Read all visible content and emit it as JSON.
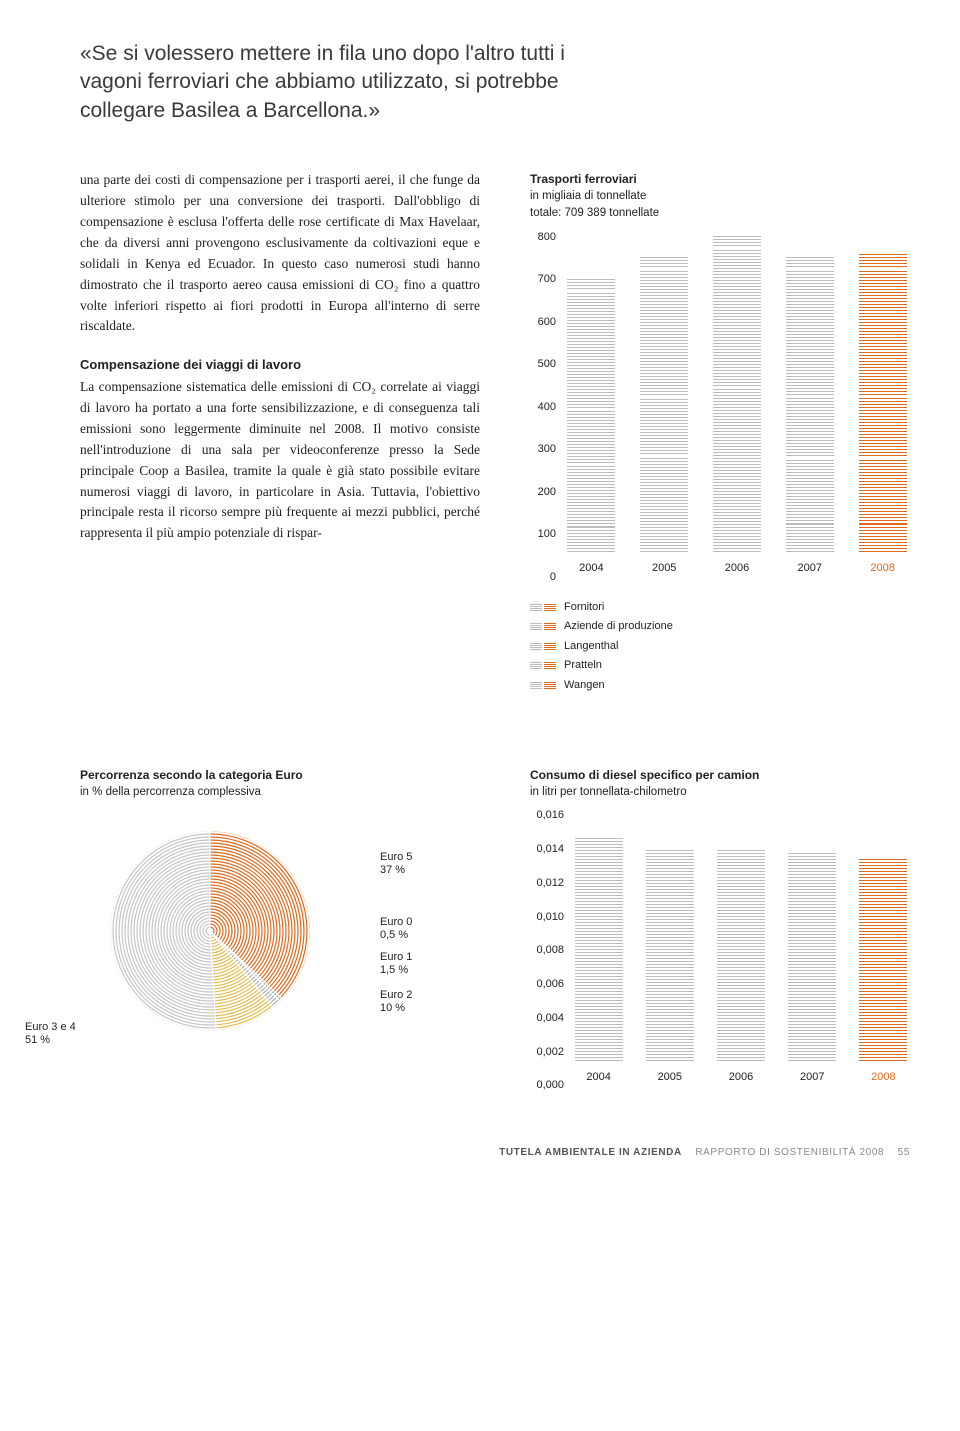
{
  "quote": "«Se si volessero mettere in fila uno dopo l'altro tutti i vagoni ferroviari che abbiamo utilizzato, si potrebbe collegare Basilea a Barcellona.»",
  "para1": "una parte dei costi di compensazione per i trasporti aerei, il che funge da ulteriore stimolo per una conversione dei trasporti. Dall'obbligo di compensazione è esclusa l'offerta delle rose certificate di Max Havelaar, che da diversi anni provengono esclusivamente da coltivazioni eque e solidali in Kenya ed Ecuador. In questo caso numerosi studi hanno dimostrato che il trasporto aereo causa emissioni di CO₂ fino a quattro volte inferiori rispetto ai fiori prodotti in Europa all'interno di serre riscaldate.",
  "subhead1": "Compensazione dei viaggi di lavoro",
  "para2": "La compensazione sistematica delle emissioni di CO₂ correlate ai viaggi di lavoro ha portato a una forte sensibilizzazione, e di conseguenza tali emissioni sono leggermente diminuite nel 2008. Il motivo consiste nell'introduzione di una sala per videoconferenze presso la Sede principale Coop a Basilea, tramite la quale è già stato possibile evitare numerosi viaggi di lavoro, in particolare in Asia. Tuttavia, l'obiettivo principale resta il ricorso sempre più frequente ai mezzi pubblici, perché rappresenta il più ampio potenziale di rispar-",
  "chart1": {
    "title": "Trasporti ferroviari",
    "subtitle1": "in migliaia di tonnellate",
    "subtitle2": "totale: 709 389 tonnellate",
    "ymax": 800,
    "ystep": 100,
    "yticks": [
      "800",
      "700",
      "600",
      "500",
      "400",
      "300",
      "200",
      "100",
      "0"
    ],
    "categories": [
      "2004",
      "2005",
      "2006",
      "2007",
      "2008"
    ],
    "highlight_index": 4,
    "stacks": [
      [
        {
          "v": 60,
          "c": "grey"
        },
        {
          "v": 150,
          "c": "grey"
        },
        {
          "v": 130,
          "c": "grey"
        },
        {
          "v": 280,
          "c": "grey"
        },
        {
          "v": 30,
          "c": "grey"
        }
      ],
      [
        {
          "v": 70,
          "c": "grey"
        },
        {
          "v": 160,
          "c": "grey"
        },
        {
          "v": 140,
          "c": "grey"
        },
        {
          "v": 300,
          "c": "grey"
        },
        {
          "v": 30,
          "c": "grey"
        }
      ],
      [
        {
          "v": 70,
          "c": "grey"
        },
        {
          "v": 170,
          "c": "grey"
        },
        {
          "v": 150,
          "c": "grey"
        },
        {
          "v": 330,
          "c": "grey"
        },
        {
          "v": 30,
          "c": "grey"
        }
      ],
      [
        {
          "v": 65,
          "c": "grey"
        },
        {
          "v": 160,
          "c": "grey"
        },
        {
          "v": 145,
          "c": "grey"
        },
        {
          "v": 300,
          "c": "grey"
        },
        {
          "v": 30,
          "c": "grey"
        }
      ],
      [
        {
          "v": 65,
          "c": "orange"
        },
        {
          "v": 160,
          "c": "orange"
        },
        {
          "v": 145,
          "c": "orange"
        },
        {
          "v": 300,
          "c": "orange"
        },
        {
          "v": 40,
          "c": "orange"
        }
      ]
    ],
    "legend": [
      "Fornitori",
      "Aziende di produzione",
      "Langenthal",
      "Pratteln",
      "Wangen"
    ]
  },
  "chart_pie": {
    "title": "Percorrenza secondo la categoria Euro",
    "subtitle": "in % della percorrenza complessiva",
    "slices": [
      {
        "label": "Euro 5",
        "pct": "37 %",
        "angle": 133.2,
        "color": "#e06a1c"
      },
      {
        "label": "Euro 0",
        "pct": "0,5 %",
        "angle": 1.8,
        "color": "#8a8a8a"
      },
      {
        "label": "Euro 1",
        "pct": "1,5 %",
        "angle": 5.4,
        "color": "#b0b0b0"
      },
      {
        "label": "Euro 2",
        "pct": "10 %",
        "angle": 36,
        "color": "#e8bb4f"
      },
      {
        "label": "Euro 3 e 4",
        "pct": "51 %",
        "angle": 183.6,
        "color": "#c6c6c6"
      }
    ]
  },
  "chart2": {
    "title": "Consumo di diesel specifico per camion",
    "subtitle": "in litri per tonnellata-chilometro",
    "ymax": 0.016,
    "yticks": [
      "0,016",
      "0,014",
      "0,012",
      "0,010",
      "0,008",
      "0,006",
      "0,004",
      "0,002",
      "0,000"
    ],
    "categories": [
      "2004",
      "2005",
      "2006",
      "2007",
      "2008"
    ],
    "highlight_index": 4,
    "values": [
      0.0132,
      0.0125,
      0.0125,
      0.0124,
      0.012
    ],
    "colors": [
      "grey",
      "grey",
      "grey",
      "grey",
      "orange"
    ]
  },
  "footer": {
    "bold": "TUTELA AMBIENTALE IN AZIENDA",
    "light": "RAPPORTO DI SOSTENIBILITÀ 2008",
    "page": "55"
  },
  "colors": {
    "orange": "#e06a1c",
    "grey": "#bcbcbc",
    "yellow": "#e8bb4f",
    "darkgrey": "#8a8a8a",
    "lightgrey": "#c6c6c6"
  }
}
